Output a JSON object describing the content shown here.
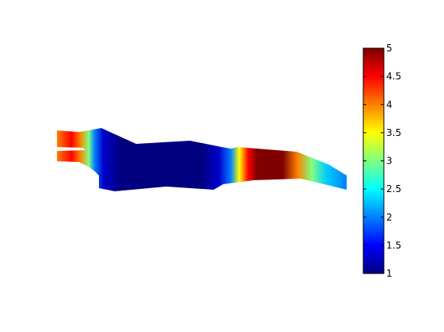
{
  "chart_data": {
    "type": "heatmap",
    "title": "",
    "xlabel": "",
    "ylabel": "",
    "axes_visible": false,
    "colormap": "jet",
    "colorbar": {
      "location": "right",
      "clim": [
        1,
        5
      ],
      "ticks": [
        1,
        1.5,
        2,
        2.5,
        3,
        3.5,
        4,
        4.5,
        5
      ],
      "tick_labels": [
        "1",
        "1.5",
        "2",
        "2.5",
        "3",
        "3.5",
        "4",
        "4.5",
        "5"
      ]
    },
    "field_description": "scalar field over an irregular elongated domain; high (~5) at far-left tip and right-center patch, low (~1) across left-center body, rising again to ~2 at right tip",
    "bands": [
      {
        "position": 0.0,
        "value": 4.0
      },
      {
        "position": 0.05,
        "value": 4.5
      },
      {
        "position": 0.08,
        "value": 4.0
      },
      {
        "position": 0.11,
        "value": 3.0
      },
      {
        "position": 0.13,
        "value": 2.0
      },
      {
        "position": 0.16,
        "value": 1.3
      },
      {
        "position": 0.22,
        "value": 1.0
      },
      {
        "position": 0.5,
        "value": 1.0
      },
      {
        "position": 0.56,
        "value": 1.3
      },
      {
        "position": 0.6,
        "value": 2.0
      },
      {
        "position": 0.63,
        "value": 3.5
      },
      {
        "position": 0.66,
        "value": 4.5
      },
      {
        "position": 0.69,
        "value": 5.0
      },
      {
        "position": 0.78,
        "value": 5.0
      },
      {
        "position": 0.83,
        "value": 4.0
      },
      {
        "position": 0.88,
        "value": 3.0
      },
      {
        "position": 0.93,
        "value": 2.3
      },
      {
        "position": 1.0,
        "value": 2.0
      }
    ]
  }
}
